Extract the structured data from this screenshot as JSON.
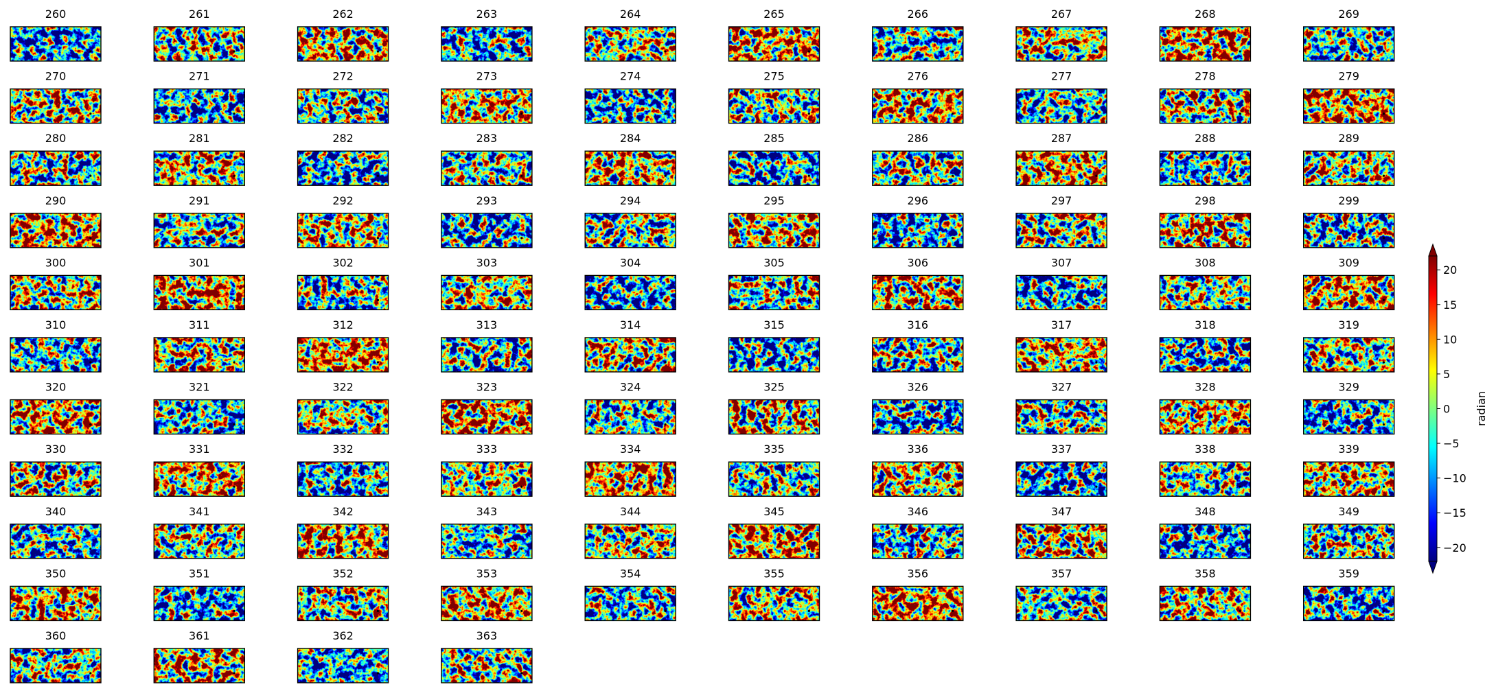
{
  "panels": {
    "titles": [
      "260",
      "261",
      "262",
      "263",
      "264",
      "265",
      "266",
      "267",
      "268",
      "269",
      "270",
      "271",
      "272",
      "273",
      "274",
      "275",
      "276",
      "277",
      "278",
      "279",
      "280",
      "281",
      "282",
      "283",
      "284",
      "285",
      "286",
      "287",
      "288",
      "289",
      "290",
      "291",
      "292",
      "293",
      "294",
      "295",
      "296",
      "297",
      "298",
      "299",
      "300",
      "301",
      "302",
      "303",
      "304",
      "305",
      "306",
      "307",
      "308",
      "309",
      "310",
      "311",
      "312",
      "313",
      "314",
      "315",
      "316",
      "317",
      "318",
      "319",
      "320",
      "321",
      "322",
      "323",
      "324",
      "325",
      "326",
      "327",
      "328",
      "329",
      "330",
      "331",
      "332",
      "333",
      "334",
      "335",
      "336",
      "337",
      "338",
      "339",
      "340",
      "341",
      "342",
      "343",
      "344",
      "345",
      "346",
      "347",
      "348",
      "349",
      "350",
      "351",
      "352",
      "353",
      "354",
      "355",
      "356",
      "357",
      "358",
      "359",
      "360",
      "361",
      "362",
      "363"
    ]
  },
  "chart_data": {
    "type": "colorbar",
    "label": "radian",
    "colormap": "jet",
    "ylim": [
      -22,
      22
    ],
    "yticks": [
      {
        "value": -20,
        "label": "−20"
      },
      {
        "value": -15,
        "label": "−15"
      },
      {
        "value": -10,
        "label": "−10"
      },
      {
        "value": -5,
        "label": "−5"
      },
      0,
      5,
      10,
      15,
      20
    ]
  }
}
